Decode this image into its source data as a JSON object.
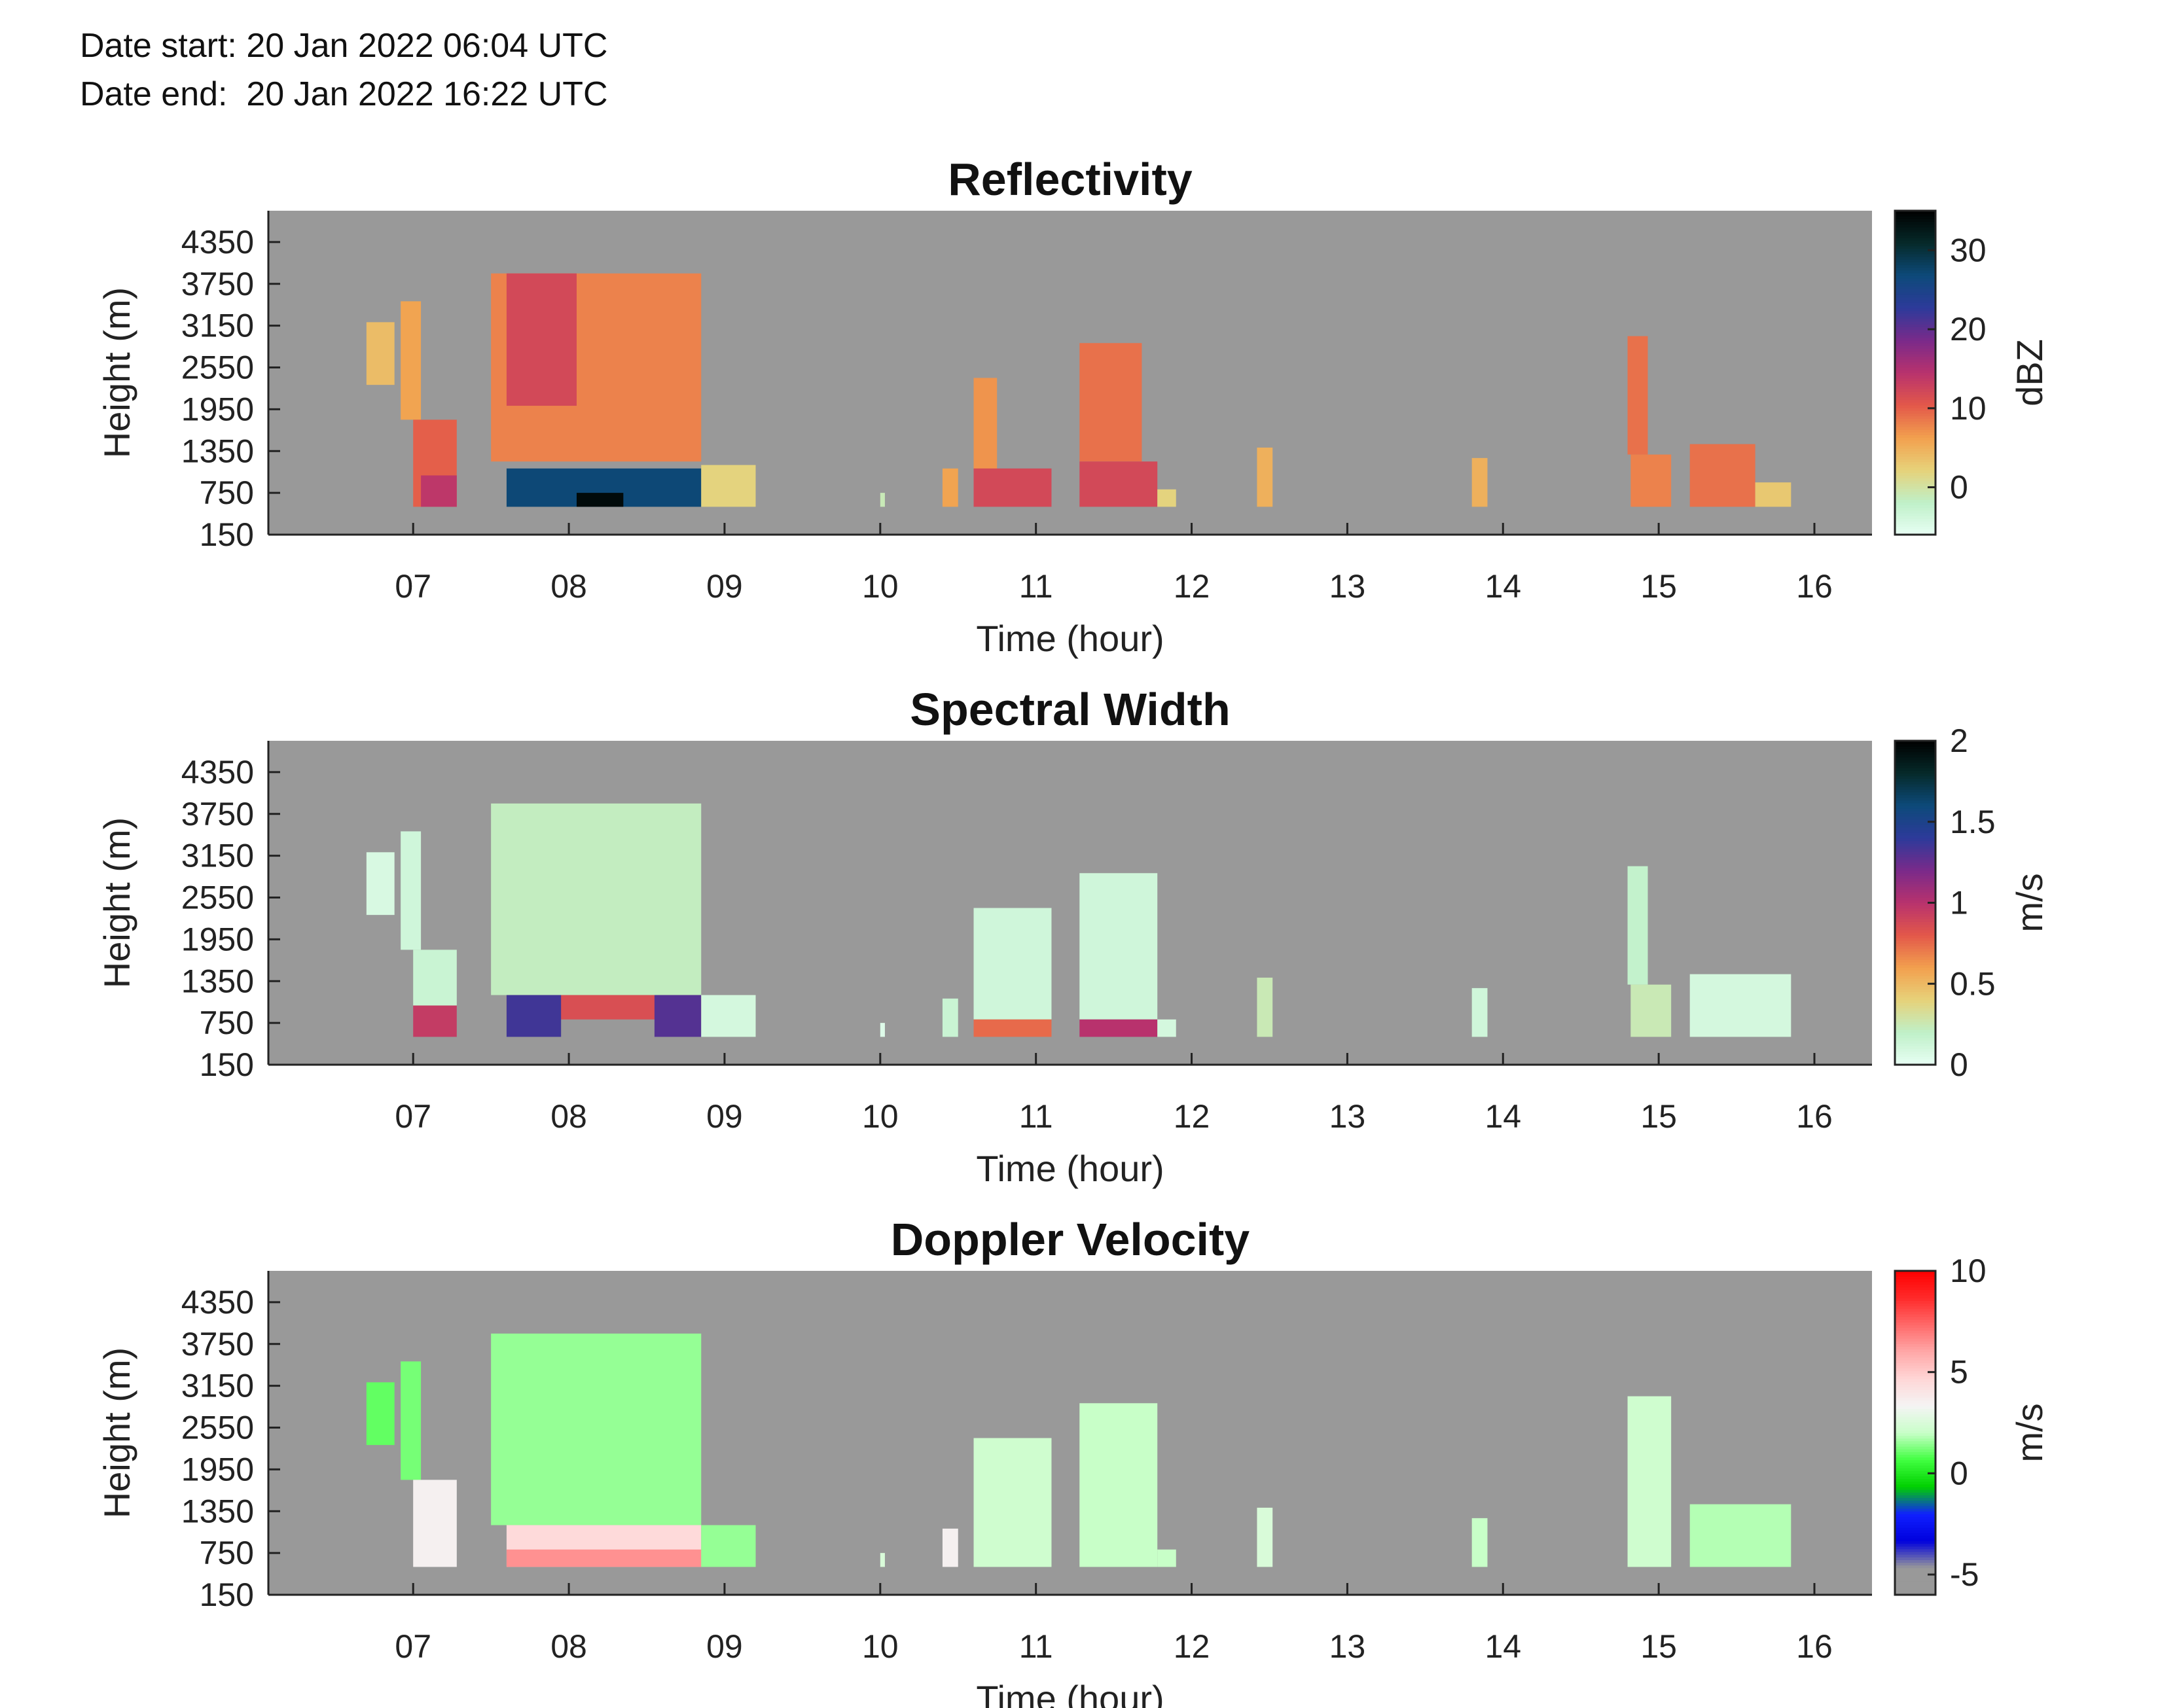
{
  "header": {
    "date_start": "Date start: 20 Jan 2022 06:04 UTC",
    "date_end": "Date end:  20 Jan 2022 16:22 UTC"
  },
  "colors": {
    "missing": "#999999"
  },
  "chart_data": [
    {
      "type": "heatmap",
      "title": "Reflectivity",
      "xlabel": "Time (hour)",
      "ylabel": "Height (m)",
      "colorbar_label": "dBZ",
      "x_ticks": [
        "07",
        "08",
        "09",
        "10",
        "11",
        "12",
        "13",
        "14",
        "15",
        "16"
      ],
      "y_ticks": [
        "150",
        "750",
        "1350",
        "1950",
        "2550",
        "3150",
        "3750",
        "4350"
      ],
      "xlim": [
        6.07,
        16.37
      ],
      "ylim": [
        150,
        4800
      ],
      "colorbar_ticks": [
        "0",
        "10",
        "20",
        "30"
      ],
      "colorbar_range": [
        -6,
        35
      ],
      "colormap": [
        "#e8fff4",
        "#bff0c8",
        "#e6d27a",
        "#f2a04e",
        "#e3584a",
        "#b8326d",
        "#7a2a8a",
        "#2d3a9a",
        "#0d4a7a",
        "#062a2a",
        "#000000"
      ],
      "cells": [
        {
          "t0": 6.7,
          "t1": 6.88,
          "h0": 2300,
          "h1": 3200,
          "v": 4
        },
        {
          "t0": 6.92,
          "t1": 7.05,
          "h0": 1800,
          "h1": 3500,
          "v": 6
        },
        {
          "t0": 7.0,
          "t1": 7.28,
          "h0": 550,
          "h1": 1800,
          "v": 10
        },
        {
          "t0": 7.05,
          "t1": 7.28,
          "h0": 550,
          "h1": 1000,
          "v": 14
        },
        {
          "t0": 7.5,
          "t1": 8.85,
          "h0": 1200,
          "h1": 3900,
          "v": 8
        },
        {
          "t0": 7.6,
          "t1": 8.05,
          "h0": 2000,
          "h1": 3900,
          "v": 12
        },
        {
          "t0": 7.6,
          "t1": 8.85,
          "h0": 550,
          "h1": 1100,
          "v": 27
        },
        {
          "t0": 8.05,
          "t1": 8.35,
          "h0": 550,
          "h1": 750,
          "v": 34
        },
        {
          "t0": 8.85,
          "t1": 9.2,
          "h0": 550,
          "h1": 1150,
          "v": 2
        },
        {
          "t0": 10.0,
          "t1": 10.03,
          "h0": 550,
          "h1": 750,
          "v": -1
        },
        {
          "t0": 10.4,
          "t1": 10.5,
          "h0": 550,
          "h1": 1100,
          "v": 6
        },
        {
          "t0": 10.6,
          "t1": 10.75,
          "h0": 800,
          "h1": 2400,
          "v": 7
        },
        {
          "t0": 10.6,
          "t1": 11.1,
          "h0": 550,
          "h1": 1100,
          "v": 12
        },
        {
          "t0": 11.28,
          "t1": 11.68,
          "h0": 1200,
          "h1": 2900,
          "v": 9
        },
        {
          "t0": 11.28,
          "t1": 11.78,
          "h0": 550,
          "h1": 1200,
          "v": 12
        },
        {
          "t0": 11.78,
          "t1": 11.9,
          "h0": 550,
          "h1": 800,
          "v": 2
        },
        {
          "t0": 12.42,
          "t1": 12.52,
          "h0": 550,
          "h1": 1400,
          "v": 5
        },
        {
          "t0": 13.8,
          "t1": 13.9,
          "h0": 550,
          "h1": 1250,
          "v": 5
        },
        {
          "t0": 14.8,
          "t1": 14.93,
          "h0": 1300,
          "h1": 3000,
          "v": 9
        },
        {
          "t0": 14.82,
          "t1": 15.08,
          "h0": 550,
          "h1": 1300,
          "v": 8
        },
        {
          "t0": 15.2,
          "t1": 15.62,
          "h0": 550,
          "h1": 1450,
          "v": 9
        },
        {
          "t0": 15.62,
          "t1": 15.85,
          "h0": 550,
          "h1": 900,
          "v": 3
        }
      ]
    },
    {
      "type": "heatmap",
      "title": "Spectral Width",
      "xlabel": "Time (hour)",
      "ylabel": "Height (m)",
      "colorbar_label": "m/s",
      "x_ticks": [
        "07",
        "08",
        "09",
        "10",
        "11",
        "12",
        "13",
        "14",
        "15",
        "16"
      ],
      "y_ticks": [
        "150",
        "750",
        "1350",
        "1950",
        "2550",
        "3150",
        "3750",
        "4350"
      ],
      "xlim": [
        6.07,
        16.37
      ],
      "ylim": [
        150,
        4800
      ],
      "colorbar_ticks": [
        "0",
        "0.5",
        "1",
        "1.5",
        "2"
      ],
      "colorbar_range": [
        0,
        2
      ],
      "colormap": [
        "#e8fff4",
        "#bff0c8",
        "#e6d27a",
        "#f2a04e",
        "#e3584a",
        "#b8326d",
        "#7a2a8a",
        "#2d3a9a",
        "#0d4a7a",
        "#062a2a",
        "#000000"
      ],
      "cells": [
        {
          "t0": 6.7,
          "t1": 6.88,
          "h0": 2300,
          "h1": 3200,
          "v": 0.08
        },
        {
          "t0": 6.92,
          "t1": 7.05,
          "h0": 1800,
          "h1": 3500,
          "v": 0.12
        },
        {
          "t0": 7.0,
          "t1": 7.28,
          "h0": 1000,
          "h1": 1800,
          "v": 0.15
        },
        {
          "t0": 7.0,
          "t1": 7.28,
          "h0": 550,
          "h1": 1000,
          "v": 0.95
        },
        {
          "t0": 7.5,
          "t1": 8.85,
          "h0": 1150,
          "h1": 3900,
          "v": 0.22
        },
        {
          "t0": 7.6,
          "t1": 8.85,
          "h0": 800,
          "h1": 1150,
          "v": 0.85
        },
        {
          "t0": 7.6,
          "t1": 7.95,
          "h0": 550,
          "h1": 1150,
          "v": 1.35
        },
        {
          "t0": 8.55,
          "t1": 8.85,
          "h0": 550,
          "h1": 1150,
          "v": 1.3
        },
        {
          "t0": 8.85,
          "t1": 9.2,
          "h0": 550,
          "h1": 1150,
          "v": 0.1
        },
        {
          "t0": 10.0,
          "t1": 10.03,
          "h0": 550,
          "h1": 750,
          "v": 0.05
        },
        {
          "t0": 10.4,
          "t1": 10.5,
          "h0": 550,
          "h1": 1100,
          "v": 0.15
        },
        {
          "t0": 10.6,
          "t1": 11.1,
          "h0": 800,
          "h1": 2400,
          "v": 0.12
        },
        {
          "t0": 10.6,
          "t1": 11.1,
          "h0": 550,
          "h1": 800,
          "v": 0.75
        },
        {
          "t0": 11.28,
          "t1": 11.78,
          "h0": 800,
          "h1": 2900,
          "v": 0.12
        },
        {
          "t0": 11.28,
          "t1": 11.78,
          "h0": 550,
          "h1": 800,
          "v": 1.0
        },
        {
          "t0": 11.78,
          "t1": 11.9,
          "h0": 550,
          "h1": 800,
          "v": 0.1
        },
        {
          "t0": 12.42,
          "t1": 12.52,
          "h0": 550,
          "h1": 1400,
          "v": 0.25
        },
        {
          "t0": 13.8,
          "t1": 13.9,
          "h0": 550,
          "h1": 1250,
          "v": 0.12
        },
        {
          "t0": 14.8,
          "t1": 14.93,
          "h0": 1300,
          "h1": 3000,
          "v": 0.18
        },
        {
          "t0": 14.82,
          "t1": 15.08,
          "h0": 550,
          "h1": 1300,
          "v": 0.25
        },
        {
          "t0": 15.2,
          "t1": 15.85,
          "h0": 550,
          "h1": 1450,
          "v": 0.1
        }
      ]
    },
    {
      "type": "heatmap",
      "title": "Doppler Velocity",
      "xlabel": "Time (hour)",
      "ylabel": "Height (m)",
      "colorbar_label": "m/s",
      "x_ticks": [
        "07",
        "08",
        "09",
        "10",
        "11",
        "12",
        "13",
        "14",
        "15",
        "16"
      ],
      "y_ticks": [
        "150",
        "750",
        "1350",
        "1950",
        "2550",
        "3150",
        "3750",
        "4350"
      ],
      "xlim": [
        6.07,
        16.37
      ],
      "ylim": [
        150,
        4800
      ],
      "colorbar_ticks": [
        "-5",
        "0",
        "5",
        "10"
      ],
      "colorbar_range": [
        -6,
        10
      ],
      "colormap": [
        "#999999",
        "#999999",
        "#0000dd",
        "#1020ff",
        "#00d000",
        "#40ff40",
        "#c8ffc8",
        "#f4f4f4",
        "#ffd6d6",
        "#ffa8a8",
        "#ff6a6a",
        "#ff2a2a",
        "#ff0000"
      ],
      "cells": [
        {
          "t0": 6.7,
          "t1": 6.88,
          "h0": 2300,
          "h1": 3200,
          "v": 1.0
        },
        {
          "t0": 6.92,
          "t1": 7.05,
          "h0": 1800,
          "h1": 3500,
          "v": 1.2
        },
        {
          "t0": 7.0,
          "t1": 7.28,
          "h0": 550,
          "h1": 1800,
          "v": 3.5
        },
        {
          "t0": 7.5,
          "t1": 8.85,
          "h0": 1150,
          "h1": 3900,
          "v": 1.5
        },
        {
          "t0": 7.6,
          "t1": 8.85,
          "h0": 550,
          "h1": 1150,
          "v": 4.5
        },
        {
          "t0": 7.6,
          "t1": 8.85,
          "h0": 550,
          "h1": 800,
          "v": 6.5
        },
        {
          "t0": 8.85,
          "t1": 9.2,
          "h0": 550,
          "h1": 1150,
          "v": 1.5
        },
        {
          "t0": 10.0,
          "t1": 10.03,
          "h0": 550,
          "h1": 750,
          "v": 2.5
        },
        {
          "t0": 10.4,
          "t1": 10.5,
          "h0": 550,
          "h1": 1100,
          "v": 3.5
        },
        {
          "t0": 10.6,
          "t1": 11.1,
          "h0": 550,
          "h1": 2400,
          "v": 2.2
        },
        {
          "t0": 11.28,
          "t1": 11.78,
          "h0": 550,
          "h1": 2900,
          "v": 2.0
        },
        {
          "t0": 11.78,
          "t1": 11.9,
          "h0": 550,
          "h1": 800,
          "v": 2.0
        },
        {
          "t0": 12.42,
          "t1": 12.52,
          "h0": 550,
          "h1": 1400,
          "v": 2.5
        },
        {
          "t0": 13.8,
          "t1": 13.9,
          "h0": 550,
          "h1": 1250,
          "v": 2.0
        },
        {
          "t0": 14.8,
          "t1": 15.08,
          "h0": 550,
          "h1": 3000,
          "v": 2.2
        },
        {
          "t0": 15.2,
          "t1": 15.85,
          "h0": 550,
          "h1": 1450,
          "v": 1.8
        }
      ]
    }
  ]
}
